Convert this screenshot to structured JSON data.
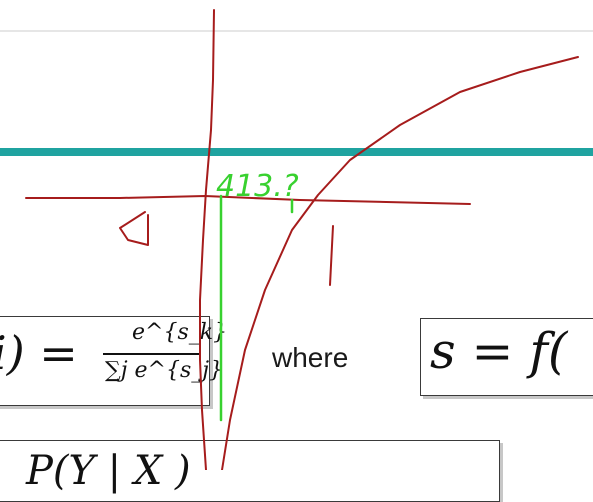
{
  "formulas": {
    "softmax_lhs": "i) =",
    "softmax_numerator": "e^{s_k}",
    "softmax_denominator": "∑j e^{s_j}",
    "where_label": "where",
    "s_definition": "s = f(",
    "bottom_partial": "P(Y | X )"
  },
  "annotations": {
    "green_text": "413.?",
    "ink_colors": {
      "red": "#a61c1c",
      "green": "#38d12f"
    }
  },
  "theme": {
    "accent_bar": "#1fa3a0",
    "box_border": "#3a3a3a"
  }
}
